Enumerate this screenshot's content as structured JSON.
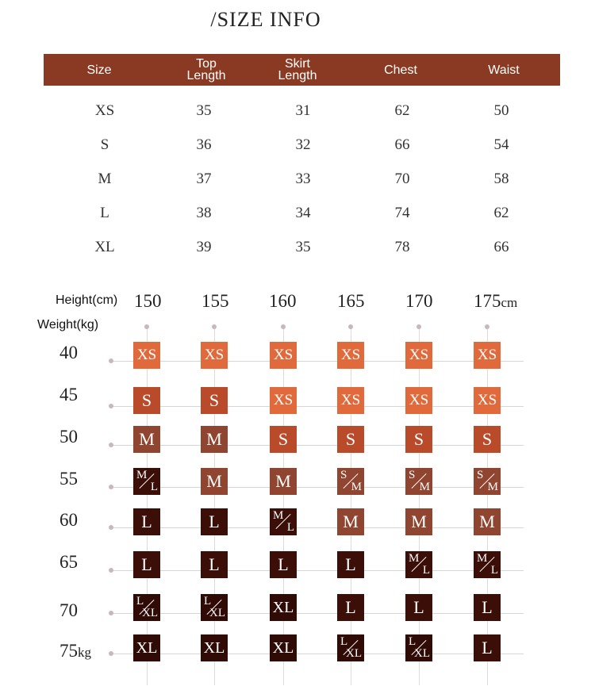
{
  "title": "/SIZE INFO",
  "size_table": {
    "headers": [
      "Size",
      "Top\nLength",
      "Skirt\nLength",
      "Chest",
      "Waist"
    ],
    "rows": [
      [
        "XS",
        "35",
        "31",
        "62",
        "50"
      ],
      [
        "S",
        "36",
        "32",
        "66",
        "54"
      ],
      [
        "M",
        "37",
        "33",
        "70",
        "58"
      ],
      [
        "L",
        "38",
        "34",
        "74",
        "62"
      ],
      [
        "XL",
        "39",
        "35",
        "78",
        "66"
      ]
    ]
  },
  "chart": {
    "height_label": "Height(cm)",
    "weight_label": "Weight(kg)",
    "heights": [
      "150",
      "155",
      "160",
      "165",
      "170",
      "175"
    ],
    "height_unit": "cm",
    "weights": [
      "40",
      "45",
      "50",
      "55",
      "60",
      "65",
      "70",
      "75"
    ],
    "weight_unit": "kg",
    "grid": [
      [
        "XS",
        "XS",
        "XS",
        "XS",
        "XS",
        "XS"
      ],
      [
        "S",
        "S",
        "XS",
        "XS",
        "XS",
        "XS"
      ],
      [
        "M",
        "M",
        "S",
        "S",
        "S",
        "S"
      ],
      [
        "M/L",
        "M",
        "M",
        "S/M",
        "S/M",
        "S/M"
      ],
      [
        "L",
        "L",
        "M/L",
        "M",
        "M",
        "M"
      ],
      [
        "L",
        "L",
        "L",
        "L",
        "M/L",
        "M/L"
      ],
      [
        "L/XL",
        "L/XL",
        "XL",
        "L",
        "L",
        "L"
      ],
      [
        "XL",
        "XL",
        "XL",
        "L/XL",
        "L/XL",
        "L"
      ]
    ],
    "size_colors": {
      "XS": "#e06a3c",
      "S": "#b94a2a",
      "M": "#8f4530",
      "L": "#3b0e08",
      "XL": "#300b06"
    }
  }
}
